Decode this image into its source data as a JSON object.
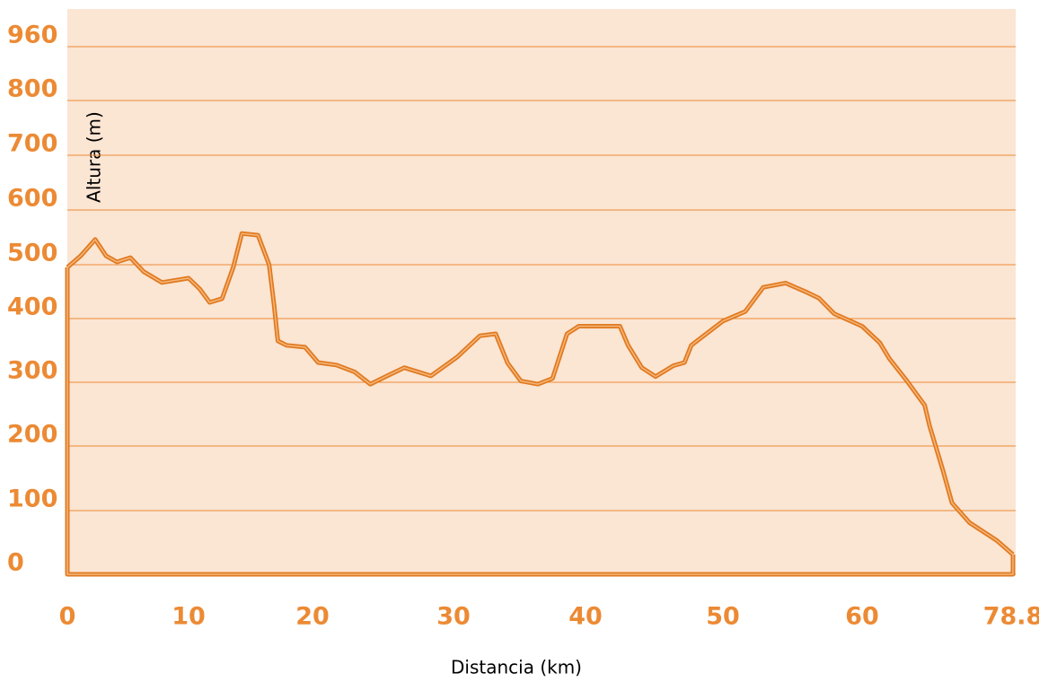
{
  "chart_data": {
    "type": "line",
    "x_label": "Distancia (km)",
    "y_label": "Altura (m)",
    "color": "#ec8a34",
    "x": [
      0,
      1.1,
      2.3,
      3.2,
      4.1,
      5.2,
      6.3,
      7.8,
      10,
      10.9,
      11.7,
      12.7,
      13.6,
      14.3,
      15.6,
      16.5,
      16.9,
      17.2,
      17.9,
      19.4,
      20.4,
      21.7,
      23.0,
      24.1,
      25.2,
      26.5,
      28.4,
      30.3,
      32.0,
      33.2,
      34.1,
      35.1,
      36.4,
      37.5,
      38.6,
      39.5,
      42.5,
      43.1,
      44.1,
      45.1,
      46.4,
      47.2,
      47.7,
      50,
      51.6,
      52.9,
      54.5,
      56.1,
      56.9,
      58.0,
      60,
      62.2,
      63.4,
      65.6,
      67.8,
      68.4,
      70.1,
      71.2,
      73.4,
      76.8,
      78.8
    ],
    "values": [
      495,
      516,
      546,
      516,
      505,
      513,
      487,
      467,
      475,
      455,
      430,
      437,
      495,
      557,
      554,
      500,
      425,
      365,
      358,
      355,
      331,
      327,
      316,
      297,
      309,
      323,
      310,
      340,
      373,
      376,
      330,
      302,
      297,
      306,
      376,
      388,
      388,
      358,
      323,
      309,
      326,
      331,
      358,
      396,
      413,
      458,
      466,
      448,
      438,
      409,
      388,
      362,
      337,
      302,
      264,
      232,
      161,
      112,
      81,
      53,
      31
    ],
    "xlim": [
      0,
      78.8
    ],
    "xticks": [
      0,
      10,
      20,
      30,
      40,
      50,
      60,
      78.8
    ],
    "ylim": [
      0,
      960
    ],
    "yticks": [
      0,
      100,
      200,
      300,
      400,
      500,
      600,
      700,
      800,
      960
    ],
    "grid": true
  }
}
